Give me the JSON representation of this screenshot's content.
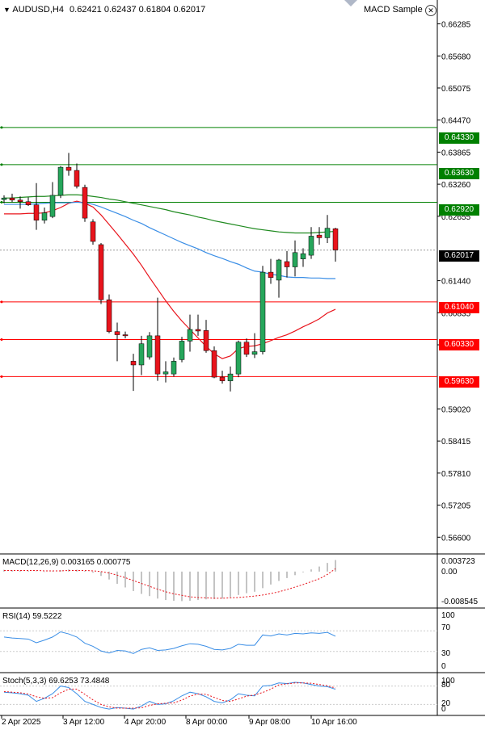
{
  "header": {
    "symbol": "AUDUSD,H4",
    "ohlc": "0.62421 0.62437 0.61804 0.62017",
    "expert": "MACD Sample"
  },
  "price_axis": [
    "0.66285",
    "0.65680",
    "0.65075",
    "0.64470",
    "0.63865",
    "0.63260",
    "0.62655",
    "0.61440",
    "0.60835",
    "0.60230",
    "0.59020",
    "0.58415",
    "0.57810",
    "0.57205",
    "0.56600"
  ],
  "levels": [
    {
      "label": "0.64330",
      "color": "#008000"
    },
    {
      "label": "0.63630",
      "color": "#008000"
    },
    {
      "label": "0.62920",
      "color": "#008000"
    },
    {
      "label": "0.62017",
      "color": "#000000"
    },
    {
      "label": "0.61040",
      "color": "#ff0000"
    },
    {
      "label": "0.60330",
      "color": "#ff0000"
    },
    {
      "label": "0.59630",
      "color": "#ff0000"
    }
  ],
  "macd": {
    "label": "MACD(12,26,9) 0.003165 0.000775",
    "ticks": [
      "0.003723",
      "0.00",
      "-0.008545"
    ]
  },
  "rsi": {
    "label": "RSI(14) 59.5222",
    "ticks": [
      "100",
      "70",
      "30",
      "0"
    ]
  },
  "stoch": {
    "label": "Stoch(5,3,3) 69.6253 73.4848",
    "ticks": [
      "100",
      "80",
      "20",
      "0"
    ]
  },
  "time_axis": [
    "2 Apr 2025",
    "3 Apr 12:00",
    "4 Apr 20:00",
    "8 Apr 00:00",
    "9 Apr 08:00",
    "10 Apr 16:00"
  ],
  "colors": {
    "bull": "#26a65b",
    "bear": "#e8141c",
    "ma_fast": "#e8141c",
    "ma_mid": "#3a8ee6",
    "ma_slow": "#1f8a1f"
  },
  "chart_data": {
    "type": "candlestick",
    "symbol": "AUDUSD",
    "timeframe": "H4",
    "candles": [
      {
        "o": 0.6297,
        "h": 0.6305,
        "l": 0.629,
        "c": 0.63
      },
      {
        "o": 0.63,
        "h": 0.6308,
        "l": 0.6292,
        "c": 0.6296
      },
      {
        "o": 0.6296,
        "h": 0.6303,
        "l": 0.628,
        "c": 0.6293
      },
      {
        "o": 0.6293,
        "h": 0.6301,
        "l": 0.6285,
        "c": 0.6287
      },
      {
        "o": 0.6287,
        "h": 0.6328,
        "l": 0.624,
        "c": 0.6258
      },
      {
        "o": 0.6258,
        "h": 0.6282,
        "l": 0.6252,
        "c": 0.6272
      },
      {
        "o": 0.6265,
        "h": 0.633,
        "l": 0.6262,
        "c": 0.6305
      },
      {
        "o": 0.6305,
        "h": 0.636,
        "l": 0.63,
        "c": 0.6358
      },
      {
        "o": 0.6358,
        "h": 0.6385,
        "l": 0.6342,
        "c": 0.6352
      },
      {
        "o": 0.6352,
        "h": 0.6365,
        "l": 0.6318,
        "c": 0.6322
      },
      {
        "o": 0.632,
        "h": 0.6325,
        "l": 0.6255,
        "c": 0.6262
      },
      {
        "o": 0.6255,
        "h": 0.626,
        "l": 0.6212,
        "c": 0.6218
      },
      {
        "o": 0.6212,
        "h": 0.6215,
        "l": 0.61,
        "c": 0.6108
      },
      {
        "o": 0.6108,
        "h": 0.6118,
        "l": 0.6045,
        "c": 0.6048
      },
      {
        "o": 0.6048,
        "h": 0.6065,
        "l": 0.5992,
        "c": 0.6042
      },
      {
        "o": 0.6042,
        "h": 0.6048,
        "l": 0.6035,
        "c": 0.604
      },
      {
        "o": 0.5992,
        "h": 0.6006,
        "l": 0.5936,
        "c": 0.5985
      },
      {
        "o": 0.5985,
        "h": 0.604,
        "l": 0.5966,
        "c": 0.6025
      },
      {
        "o": 0.6,
        "h": 0.6047,
        "l": 0.5995,
        "c": 0.604
      },
      {
        "o": 0.604,
        "h": 0.6112,
        "l": 0.5955,
        "c": 0.5968
      },
      {
        "o": 0.5968,
        "h": 0.5992,
        "l": 0.5952,
        "c": 0.5972
      },
      {
        "o": 0.5968,
        "h": 0.5999,
        "l": 0.5963,
        "c": 0.5992
      },
      {
        "o": 0.5995,
        "h": 0.6038,
        "l": 0.599,
        "c": 0.603
      },
      {
        "o": 0.603,
        "h": 0.608,
        "l": 0.601,
        "c": 0.6052
      },
      {
        "o": 0.6052,
        "h": 0.608,
        "l": 0.604,
        "c": 0.6049
      },
      {
        "o": 0.605,
        "h": 0.607,
        "l": 0.6008,
        "c": 0.6012
      },
      {
        "o": 0.6012,
        "h": 0.602,
        "l": 0.596,
        "c": 0.5962
      },
      {
        "o": 0.5962,
        "h": 0.5974,
        "l": 0.595,
        "c": 0.5955
      },
      {
        "o": 0.5955,
        "h": 0.5982,
        "l": 0.5935,
        "c": 0.5968
      },
      {
        "o": 0.5968,
        "h": 0.6031,
        "l": 0.5962,
        "c": 0.6028
      },
      {
        "o": 0.6028,
        "h": 0.6035,
        "l": 0.6,
        "c": 0.6005
      },
      {
        "o": 0.6005,
        "h": 0.6045,
        "l": 0.5998,
        "c": 0.601
      },
      {
        "o": 0.601,
        "h": 0.6172,
        "l": 0.6005,
        "c": 0.616
      },
      {
        "o": 0.616,
        "h": 0.6185,
        "l": 0.6138,
        "c": 0.615
      },
      {
        "o": 0.6145,
        "h": 0.6185,
        "l": 0.6112,
        "c": 0.6183
      },
      {
        "o": 0.618,
        "h": 0.62,
        "l": 0.615,
        "c": 0.617
      },
      {
        "o": 0.617,
        "h": 0.622,
        "l": 0.6152,
        "c": 0.6197
      },
      {
        "o": 0.6185,
        "h": 0.6205,
        "l": 0.617,
        "c": 0.6195
      },
      {
        "o": 0.6192,
        "h": 0.6245,
        "l": 0.6185,
        "c": 0.6228
      },
      {
        "o": 0.623,
        "h": 0.6245,
        "l": 0.6212,
        "c": 0.6225
      },
      {
        "o": 0.6225,
        "h": 0.6268,
        "l": 0.6215,
        "c": 0.6243
      },
      {
        "o": 0.6242,
        "h": 0.6244,
        "l": 0.618,
        "c": 0.6202
      }
    ],
    "moving_averages": [
      {
        "name": "fast",
        "color": "#e8141c",
        "values": [
          0.627,
          0.627,
          0.627,
          0.6271,
          0.6271,
          0.6272,
          0.6276,
          0.6282,
          0.629,
          0.6294,
          0.629,
          0.6283,
          0.6268,
          0.625,
          0.6232,
          0.6213,
          0.6194,
          0.6173,
          0.615,
          0.6128,
          0.6106,
          0.6086,
          0.6068,
          0.6052,
          0.6036,
          0.602,
          0.6006,
          0.5997,
          0.6002,
          0.6016,
          0.602,
          0.6021,
          0.6025,
          0.6031,
          0.6037,
          0.6042,
          0.6049,
          0.6057,
          0.6064,
          0.6072,
          0.6083,
          0.609
        ]
      },
      {
        "name": "mid",
        "color": "#3a8ee6",
        "values": [
          0.6288,
          0.6288,
          0.6288,
          0.6288,
          0.6289,
          0.629,
          0.6291,
          0.6291,
          0.6291,
          0.6292,
          0.6291,
          0.6288,
          0.6283,
          0.6277,
          0.6271,
          0.6265,
          0.6258,
          0.6252,
          0.6244,
          0.6237,
          0.623,
          0.6223,
          0.6216,
          0.621,
          0.6204,
          0.6197,
          0.6191,
          0.6186,
          0.618,
          0.6175,
          0.6168,
          0.6162,
          0.616,
          0.6156,
          0.6154,
          0.6151,
          0.615,
          0.615,
          0.6149,
          0.6149,
          0.6148,
          0.6148
        ]
      },
      {
        "name": "slow",
        "color": "#1f8a1f",
        "values": [
          0.63,
          0.63,
          0.6301,
          0.6302,
          0.6303,
          0.6303,
          0.6304,
          0.6305,
          0.6306,
          0.6306,
          0.6305,
          0.6303,
          0.6301,
          0.6298,
          0.6296,
          0.6293,
          0.629,
          0.6287,
          0.6284,
          0.6281,
          0.6278,
          0.6274,
          0.6271,
          0.6268,
          0.6264,
          0.6261,
          0.6257,
          0.6254,
          0.6251,
          0.6248,
          0.6245,
          0.6242,
          0.624,
          0.6238,
          0.6236,
          0.6235,
          0.6234,
          0.6234,
          0.6234,
          0.6235,
          0.6236,
          0.6237
        ]
      }
    ],
    "y_range": [
      0.563,
      0.664
    ],
    "macd_hist": [
      0.0005,
      0.0004,
      0.0003,
      0.0002,
      0.0001,
      -0.0001,
      0.0001,
      0.0004,
      0.0006,
      0.0005,
      0.0002,
      -0.0003,
      -0.0012,
      -0.0022,
      -0.0034,
      -0.0044,
      -0.0054,
      -0.0062,
      -0.0068,
      -0.0075,
      -0.0079,
      -0.0081,
      -0.0082,
      -0.0081,
      -0.0079,
      -0.0077,
      -0.0076,
      -0.0075,
      -0.0071,
      -0.0065,
      -0.006,
      -0.0056,
      -0.0046,
      -0.0036,
      -0.0026,
      -0.0018,
      -0.001,
      -0.0002,
      0.0006,
      0.0014,
      0.0024,
      0.0032
    ],
    "macd_signal": [
      0.0003,
      0.0003,
      0.0003,
      0.0003,
      0.0003,
      0.0002,
      0.0002,
      0.0002,
      0.0003,
      0.0003,
      0.0003,
      0.0002,
      0.0,
      -0.0004,
      -0.001,
      -0.0017,
      -0.0025,
      -0.0033,
      -0.0041,
      -0.0049,
      -0.0056,
      -0.0062,
      -0.0066,
      -0.007,
      -0.0072,
      -0.0073,
      -0.0074,
      -0.0074,
      -0.0073,
      -0.0072,
      -0.007,
      -0.0068,
      -0.0065,
      -0.0061,
      -0.0056,
      -0.005,
      -0.0043,
      -0.0036,
      -0.0028,
      -0.002,
      -0.0008,
      0.0008
    ],
    "macd_range": [
      -0.009,
      0.004
    ],
    "rsi": [
      58,
      56,
      55,
      54,
      47,
      52,
      58,
      68,
      64,
      58,
      46,
      40,
      31,
      27,
      32,
      31,
      26,
      34,
      37,
      32,
      33,
      36,
      41,
      45,
      44,
      40,
      34,
      33,
      36,
      44,
      42,
      42,
      62,
      60,
      64,
      62,
      65,
      64,
      66,
      65,
      67,
      59.5
    ],
    "stoch_k": [
      60,
      58,
      55,
      50,
      30,
      40,
      55,
      80,
      75,
      55,
      30,
      20,
      10,
      5,
      10,
      8,
      5,
      15,
      30,
      20,
      22,
      32,
      48,
      60,
      55,
      45,
      30,
      25,
      35,
      55,
      50,
      48,
      80,
      82,
      90,
      88,
      92,
      90,
      85,
      80,
      78,
      69.6
    ],
    "stoch_d": [
      62,
      60,
      58,
      54,
      45,
      40,
      42,
      58,
      70,
      70,
      53,
      35,
      20,
      12,
      8,
      8,
      8,
      9,
      17,
      22,
      24,
      25,
      34,
      47,
      54,
      53,
      43,
      33,
      30,
      38,
      47,
      51,
      59,
      70,
      84,
      87,
      90,
      90,
      89,
      85,
      81,
      73.5
    ]
  }
}
